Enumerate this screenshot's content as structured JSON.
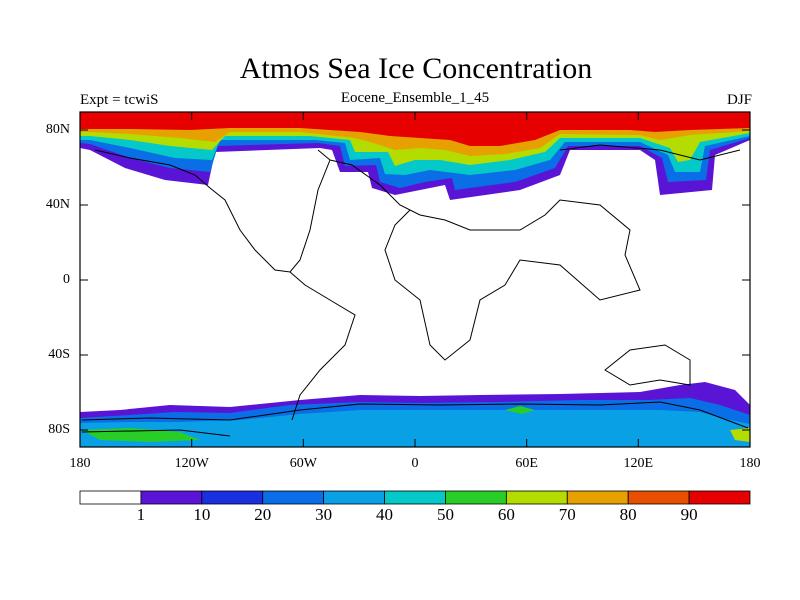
{
  "map": {
    "title": "Atmos Sea Ice Concentration",
    "subtitle": "Eocene_Ensemble_1_45",
    "left_label": "Expt = tcwiS",
    "right_label": "DJF"
  },
  "axes": {
    "x_ticks": [
      "180",
      "120W",
      "60W",
      "0",
      "60E",
      "120E",
      "180"
    ],
    "y_ticks": [
      "80N",
      "40N",
      "0",
      "40S",
      "80S"
    ]
  },
  "colorbar": {
    "colors": [
      "#ffffff",
      "#5a14d6",
      "#1a30e0",
      "#0a6ee6",
      "#0aa0e6",
      "#05c8c8",
      "#28cd28",
      "#b4dc00",
      "#e6a000",
      "#e65000",
      "#e60000"
    ],
    "labels": [
      "1",
      "10",
      "20",
      "30",
      "40",
      "50",
      "60",
      "70",
      "80",
      "90"
    ]
  }
}
